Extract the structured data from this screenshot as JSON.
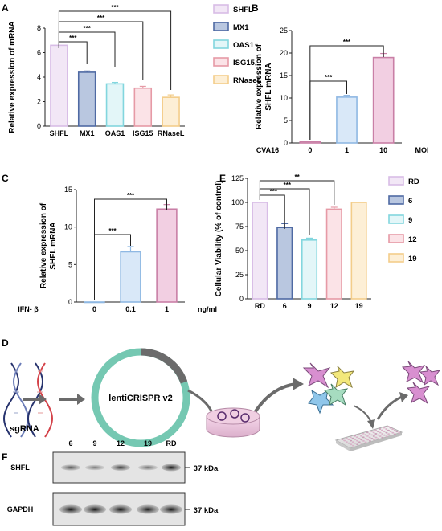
{
  "panels": {
    "A": "A",
    "B": "B",
    "C": "C",
    "D": "D",
    "E": "E",
    "F": "F"
  },
  "colors": {
    "shfl": {
      "fill": "#f2e7f6",
      "stroke": "#d8bde6"
    },
    "mx1": {
      "fill": "#b9c7e0",
      "stroke": "#4f6aa3"
    },
    "oas1": {
      "fill": "#e3f6f8",
      "stroke": "#82d6de"
    },
    "isg15": {
      "fill": "#fbe3e7",
      "stroke": "#e69aa6"
    },
    "rnasel": {
      "fill": "#fdefd6",
      "stroke": "#f3cd8a"
    },
    "pink_bar": {
      "fill": "#f2cfe2",
      "stroke": "#c97fa6"
    },
    "blue_bar": {
      "fill": "#d9e8f8",
      "stroke": "#8fb8e3"
    },
    "teal": "#6fc7b0",
    "grey": "#6b6b6b"
  },
  "chart_data": [
    {
      "panel": "A",
      "type": "bar",
      "ylabel": "Relative expression of mRNA",
      "ylim": [
        0,
        8
      ],
      "yticks": [
        "0",
        "2",
        "4",
        "6",
        "8"
      ],
      "categories": [
        "SHFL",
        "MX1",
        "OAS1",
        "ISG15",
        "RNaseL"
      ],
      "values": [
        6.6,
        4.4,
        3.45,
        3.1,
        2.35
      ],
      "errors": [
        0,
        0.1,
        0.12,
        0.15,
        0.2
      ],
      "significance": [
        "***",
        "***",
        "***",
        "***"
      ],
      "legend": [
        "SHFL",
        "MX1",
        "OAS1",
        "ISG15",
        "RNaseL"
      ],
      "legend_position": "right"
    },
    {
      "panel": "B",
      "type": "bar",
      "ylabel": "Relative expression of SHFL mRNA",
      "ylim": [
        0,
        25
      ],
      "yticks": [
        "0",
        "5",
        "10",
        "15",
        "20",
        "25"
      ],
      "categories": [
        "0",
        "1",
        "10"
      ],
      "values": [
        0.3,
        10.2,
        19
      ],
      "errors": [
        0,
        0.4,
        0.9
      ],
      "x_prefix": "CVA16",
      "x_suffix": "MOI",
      "significance": [
        "***",
        "***"
      ]
    },
    {
      "panel": "C",
      "type": "bar",
      "ylabel": "Relative expression of SHFL mRNA",
      "ylim": [
        0,
        15
      ],
      "yticks": [
        "0",
        "5",
        "10",
        "15"
      ],
      "categories": [
        "0",
        "0.1",
        "1"
      ],
      "values": [
        0,
        6.7,
        12.4
      ],
      "errors": [
        0,
        0.7,
        0.6
      ],
      "x_prefix": "IFN- β",
      "x_suffix": "ng/ml",
      "significance": [
        "***",
        "***"
      ]
    },
    {
      "panel": "E",
      "type": "bar",
      "ylabel": "Cellular Viability (% of control)",
      "ylim": [
        0,
        125
      ],
      "yticks": [
        "0",
        "25",
        "50",
        "75",
        "100",
        "125"
      ],
      "categories": [
        "RD",
        "6",
        "9",
        "12",
        "19"
      ],
      "values": [
        100,
        74,
        61,
        93,
        100
      ],
      "errors": [
        0,
        4,
        2,
        2,
        0
      ],
      "significance": [
        "***",
        "***",
        "**"
      ],
      "legend": [
        "RD",
        "6",
        "9",
        "12",
        "19"
      ],
      "legend_position": "right"
    }
  ],
  "panelD": {
    "plasmid": "lentiCRISPR v2",
    "sgRNA": "sgRNA"
  },
  "panelF": {
    "lanes": [
      "6",
      "9",
      "12",
      "19",
      "RD"
    ],
    "bands": [
      {
        "label": "SHFL",
        "size": "37 kDa",
        "intensity": [
          0.55,
          0.35,
          0.7,
          0.4,
          0.95
        ]
      },
      {
        "label": "GAPDH",
        "size": "37 kDa",
        "intensity": [
          0.95,
          0.95,
          0.95,
          0.9,
          0.95
        ]
      }
    ]
  }
}
